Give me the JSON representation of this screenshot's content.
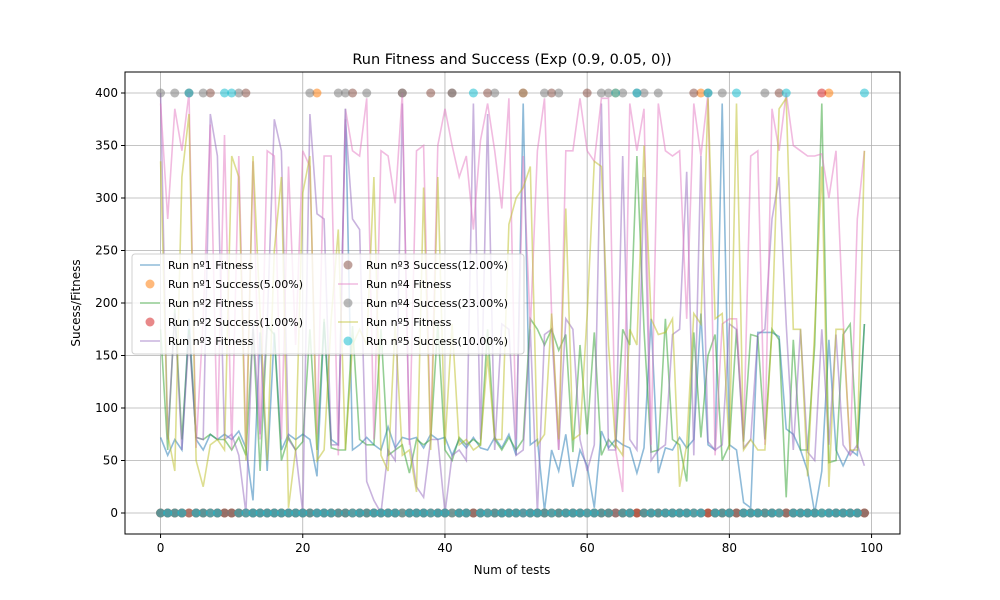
{
  "chart_data": {
    "type": "line",
    "title": "Run Fitness and Success (Exp (0.9, 0.05, 0))",
    "xlabel": "Num of tests",
    "ylabel": "Sucess/Fitness",
    "xlim": [
      -5,
      104
    ],
    "ylim": [
      -20,
      420
    ],
    "xticks": [
      0,
      20,
      40,
      60,
      80,
      100
    ],
    "yticks": [
      0,
      50,
      100,
      150,
      200,
      250,
      300,
      350,
      400
    ],
    "grid": true,
    "legend_position": "center-left",
    "series": [
      {
        "name": "Run nº1 Fitness",
        "kind": "line",
        "color": "#1f77b4",
        "y": [
          72,
          55,
          70,
          60,
          185,
          70,
          60,
          75,
          70,
          75,
          70,
          78,
          62,
          12,
          172,
          40,
          172,
          60,
          75,
          70,
          75,
          70,
          35,
          182,
          70,
          65,
          385,
          60,
          65,
          72,
          65,
          60,
          82,
          62,
          72,
          70,
          72,
          62,
          75,
          70,
          72,
          55,
          70,
          62,
          72,
          62,
          60,
          72,
          62,
          75,
          55,
          390,
          65,
          70,
          2,
          60,
          40,
          75,
          25,
          60,
          45,
          5,
          78,
          62,
          70,
          65,
          62,
          38,
          62,
          185,
          38,
          62,
          60,
          72,
          62,
          70,
          190,
          65,
          60,
          390,
          65,
          60,
          10,
          5,
          172,
          172,
          172,
          168,
          80,
          75,
          60,
          40,
          0,
          40,
          165,
          60,
          45,
          60,
          55,
          180
        ],
        "x_start": 0
      },
      {
        "name": "Run nº1 Success(5.00%)",
        "kind": "points",
        "color": "#ff7f0e",
        "x_success": [
          22,
          51,
          64,
          76,
          94
        ],
        "success_value": 400,
        "fail_value": 0
      },
      {
        "name": "Run nº2 Fitness",
        "kind": "line",
        "color": "#2ca02c",
        "y": [
          175,
          60,
          195,
          70,
          175,
          72,
          70,
          75,
          70,
          70,
          60,
          72,
          55,
          175,
          40,
          178,
          170,
          50,
          72,
          60,
          68,
          175,
          60,
          185,
          62,
          60,
          60,
          178,
          70,
          65,
          65,
          175,
          55,
          60,
          65,
          38,
          70,
          65,
          70,
          180,
          60,
          50,
          72,
          65,
          70,
          65,
          175,
          70,
          60,
          72,
          60,
          70,
          185,
          175,
          160,
          175,
          155,
          170,
          58,
          160,
          75,
          172,
          55,
          70,
          62,
          175,
          160,
          340,
          175,
          58,
          60,
          185,
          70,
          65,
          30,
          172,
          72,
          150,
          170,
          50,
          65,
          175,
          68,
          170,
          168,
          70,
          175,
          165,
          15,
          165,
          60,
          60,
          160,
          390,
          48,
          50,
          170,
          180,
          62,
          180
        ],
        "x_start": 0
      },
      {
        "name": "Run nº2 Success(1.00%)",
        "kind": "points",
        "color": "#d62728",
        "x_success": [
          93
        ],
        "success_value": 400,
        "fail_value": 0
      },
      {
        "name": "Run nº3 Fitness",
        "kind": "line",
        "color": "#9467bd",
        "y": [
          400,
          70,
          190,
          60,
          170,
          72,
          70,
          380,
          340,
          70,
          75,
          55,
          0,
          180,
          75,
          180,
          375,
          345,
          70,
          60,
          0,
          380,
          285,
          280,
          65,
          65,
          375,
          280,
          270,
          30,
          12,
          0,
          60,
          50,
          390,
          70,
          25,
          15,
          70,
          70,
          0,
          55,
          60,
          50,
          390,
          70,
          380,
          60,
          180,
          175,
          55,
          60,
          175,
          0,
          170,
          175,
          60,
          185,
          175,
          70,
          40,
          65,
          390,
          60,
          60,
          340,
          70,
          60,
          320,
          50,
          60,
          65,
          170,
          175,
          325,
          55,
          340,
          68,
          60,
          65,
          180,
          175,
          62,
          70,
          170,
          175,
          280,
          320,
          180,
          60,
          175,
          58,
          50,
          175,
          65,
          170,
          65,
          55,
          65,
          45
        ],
        "x_start": 0
      },
      {
        "name": "Run nº3 Success(12.00%)",
        "kind": "points",
        "color": "#8c564b",
        "x_success": [
          4,
          7,
          12,
          27,
          34,
          38,
          41,
          46,
          55,
          60,
          75,
          87
        ],
        "success_value": 400,
        "fail_value": 0
      },
      {
        "name": "Run nº4 Fitness",
        "kind": "line",
        "color": "#e377c2",
        "y": [
          390,
          280,
          385,
          345,
          400,
          62,
          185,
          370,
          70,
          360,
          60,
          340,
          65,
          335,
          70,
          345,
          340,
          70,
          330,
          160,
          345,
          330,
          75,
          340,
          340,
          55,
          385,
          345,
          340,
          395,
          70,
          345,
          340,
          295,
          400,
          65,
          345,
          350,
          70,
          350,
          385,
          350,
          320,
          340,
          270,
          355,
          390,
          345,
          290,
          395,
          70,
          340,
          175,
          345,
          395,
          190,
          60,
          345,
          345,
          395,
          345,
          335,
          395,
          395,
          60,
          20,
          390,
          345,
          385,
          65,
          390,
          345,
          340,
          345,
          185,
          390,
          340,
          400,
          55,
          180,
          185,
          185,
          70,
          340,
          345,
          65,
          385,
          345,
          400,
          350,
          345,
          340,
          340,
          342,
          300,
          345,
          185,
          55,
          280,
          345
        ],
        "x_start": 0
      },
      {
        "name": "Run nº4 Success(23.00%)",
        "kind": "points",
        "color": "#7f7f7f",
        "x_success": [
          0,
          2,
          6,
          11,
          21,
          25,
          26,
          29,
          34,
          41,
          47,
          51,
          54,
          56,
          62,
          63,
          65,
          67,
          68,
          70,
          77,
          79,
          85
        ],
        "success_value": 400,
        "fail_value": 0
      },
      {
        "name": "Run nº5 Fitness",
        "kind": "line",
        "color": "#bcbd22",
        "y": [
          335,
          75,
          40,
          320,
          380,
          50,
          25,
          65,
          70,
          60,
          340,
          320,
          50,
          340,
          190,
          50,
          250,
          320,
          5,
          60,
          305,
          340,
          50,
          60,
          185,
          270,
          60,
          160,
          175,
          160,
          320,
          55,
          40,
          180,
          55,
          60,
          20,
          310,
          60,
          320,
          65,
          180,
          65,
          70,
          60,
          65,
          150,
          70,
          70,
          275,
          300,
          310,
          330,
          65,
          75,
          190,
          70,
          290,
          70,
          75,
          190,
          335,
          330,
          160,
          65,
          55,
          175,
          160,
          350,
          185,
          170,
          172,
          185,
          25,
          65,
          190,
          180,
          395,
          185,
          190,
          60,
          390,
          60,
          70,
          60,
          60,
          175,
          385,
          395,
          175,
          175,
          35,
          175,
          330,
          25,
          175,
          175,
          60,
          60,
          345
        ],
        "x_start": 0
      },
      {
        "name": "Run nº5 Success(10.00%)",
        "kind": "points",
        "color": "#17becf",
        "x_success": [
          4,
          9,
          10,
          44,
          64,
          67,
          77,
          81,
          88,
          99
        ],
        "success_value": 400,
        "fail_value": 0
      }
    ]
  }
}
